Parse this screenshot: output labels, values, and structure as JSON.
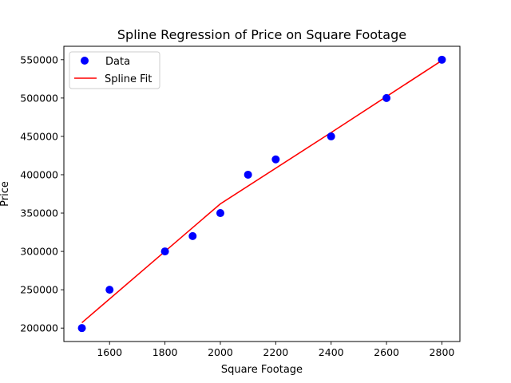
{
  "chart_data": {
    "type": "scatter",
    "title": "Spline Regression of Price on Square Footage",
    "xlabel": "Square Footage",
    "ylabel": "Price",
    "xlim": [
      1435,
      2865
    ],
    "ylim": [
      182500,
      567500
    ],
    "xticks": [
      1600,
      1800,
      2000,
      2200,
      2400,
      2600,
      2800
    ],
    "yticks": [
      200000,
      250000,
      300000,
      350000,
      400000,
      450000,
      500000,
      550000
    ],
    "grid": false,
    "legend_position": "top-left",
    "series": [
      {
        "name": "Data",
        "kind": "scatter",
        "color": "#0000ff",
        "x": [
          1500,
          1600,
          1800,
          1900,
          2000,
          2100,
          2200,
          2400,
          2600,
          2800
        ],
        "y": [
          200000,
          250000,
          300000,
          320000,
          350000,
          400000,
          420000,
          450000,
          500000,
          550000
        ]
      },
      {
        "name": "Spline Fit",
        "kind": "line",
        "color": "#ff0000",
        "x": [
          1500,
          1800,
          2000,
          2400,
          2600,
          2800
        ],
        "y": [
          207000,
          300000,
          362000,
          455000,
          502000,
          549000
        ]
      }
    ]
  }
}
